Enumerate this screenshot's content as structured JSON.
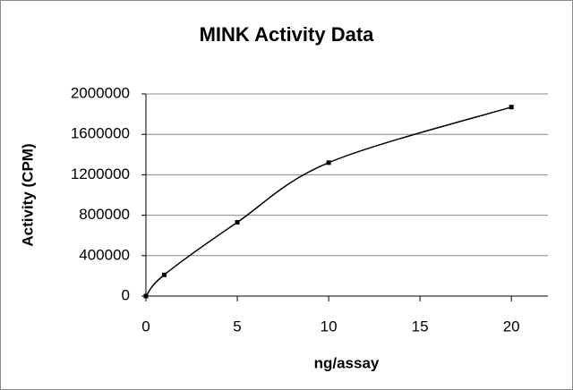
{
  "chart_data": {
    "type": "line",
    "title": "MINK Activity Data",
    "x_label": "ng/assay",
    "y_label": "Activity (CPM)",
    "x": [
      0,
      1,
      5,
      10,
      20
    ],
    "values": [
      0,
      210000,
      730000,
      1320000,
      1870000
    ],
    "color": "#000000",
    "smooth": true,
    "markers": true,
    "xlim": [
      0,
      22
    ],
    "xticks": [
      0,
      5,
      10,
      15,
      20
    ],
    "ylim": [
      0,
      2000000
    ],
    "yticks": [
      0,
      400000,
      800000,
      1200000,
      1600000,
      2000000
    ],
    "grid": true
  }
}
